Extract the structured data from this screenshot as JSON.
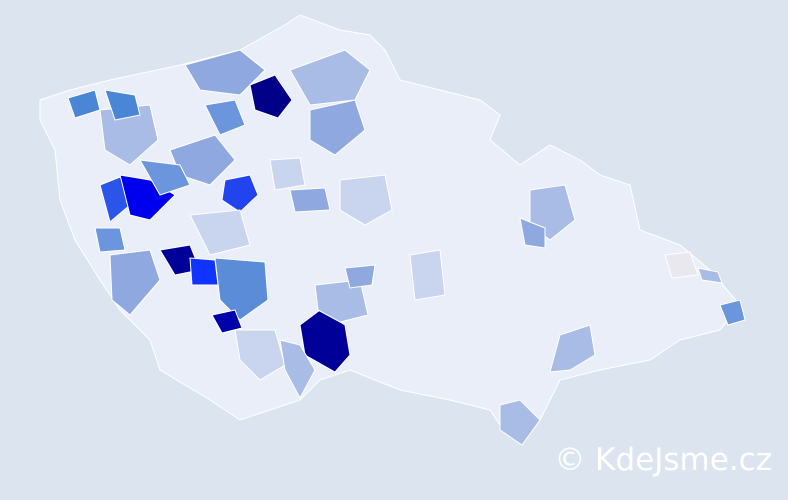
{
  "watermark": "© KdeJsme.cz"
}
